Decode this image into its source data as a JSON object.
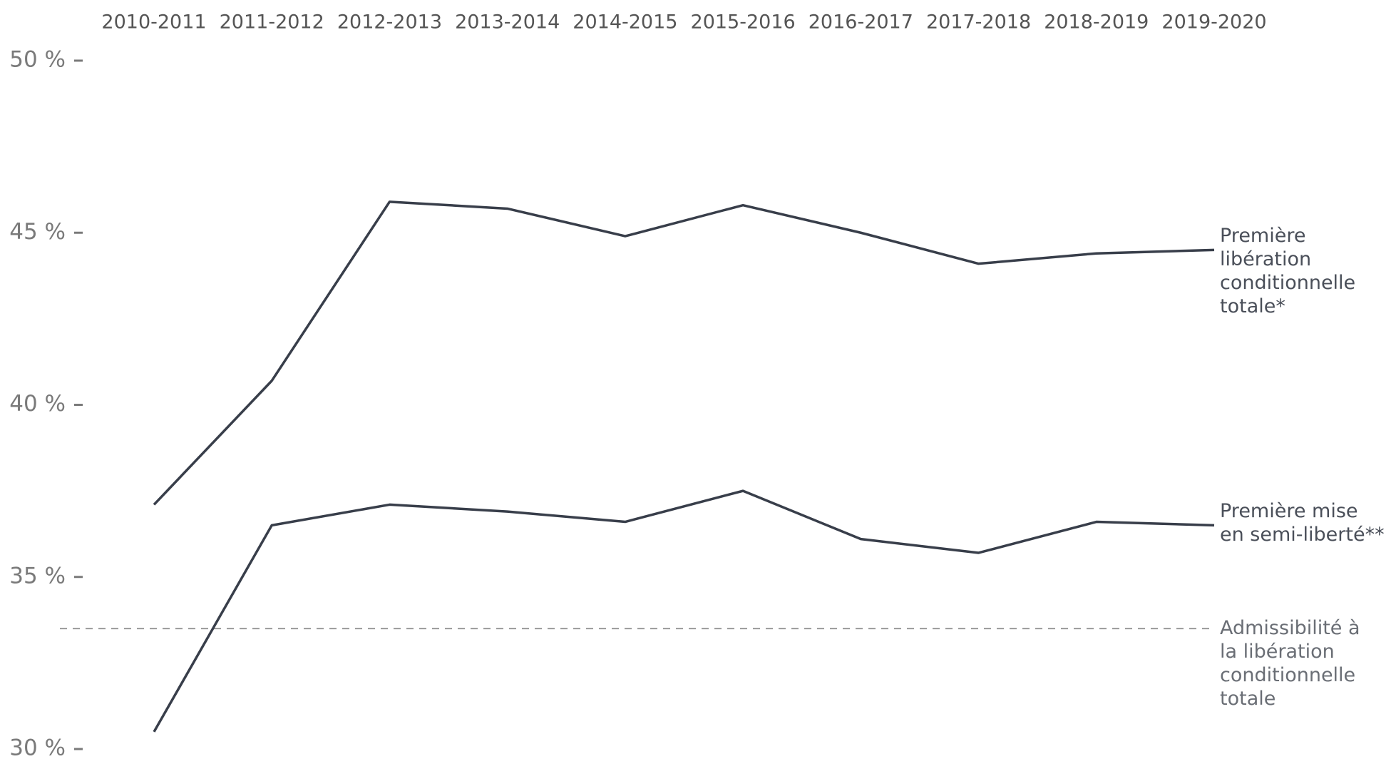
{
  "chart_data": {
    "type": "line",
    "categories": [
      "2010-2011",
      "2011-2012",
      "2012-2013",
      "2013-2014",
      "2014-2015",
      "2015-2016",
      "2016-2017",
      "2017-2018",
      "2018-2019",
      "2019-2020"
    ],
    "series": [
      {
        "name": "Première\nlibération\nconditionnelle\ntotale*",
        "color": "#383e4a",
        "values": [
          37.1,
          40.7,
          45.9,
          45.7,
          44.9,
          45.8,
          45.0,
          44.1,
          44.4,
          44.5
        ]
      },
      {
        "name": "Première mise\nen semi-liberté**",
        "color": "#383e4a",
        "values": [
          30.5,
          36.5,
          37.1,
          36.9,
          36.6,
          37.5,
          36.1,
          35.7,
          36.6,
          36.5
        ]
      }
    ],
    "reference_line": {
      "value": 33.5,
      "label": "Admissibilité à\nla libération\nconditionnelle\ntotale",
      "color": "#999999"
    },
    "ylim": [
      30,
      50
    ],
    "yticks": [
      {
        "value": 30,
        "label": "30 %"
      },
      {
        "value": 35,
        "label": "35 %"
      },
      {
        "value": 40,
        "label": "40 %"
      },
      {
        "value": 45,
        "label": "45 %"
      },
      {
        "value": 50,
        "label": "50 %"
      }
    ],
    "grid": false
  }
}
